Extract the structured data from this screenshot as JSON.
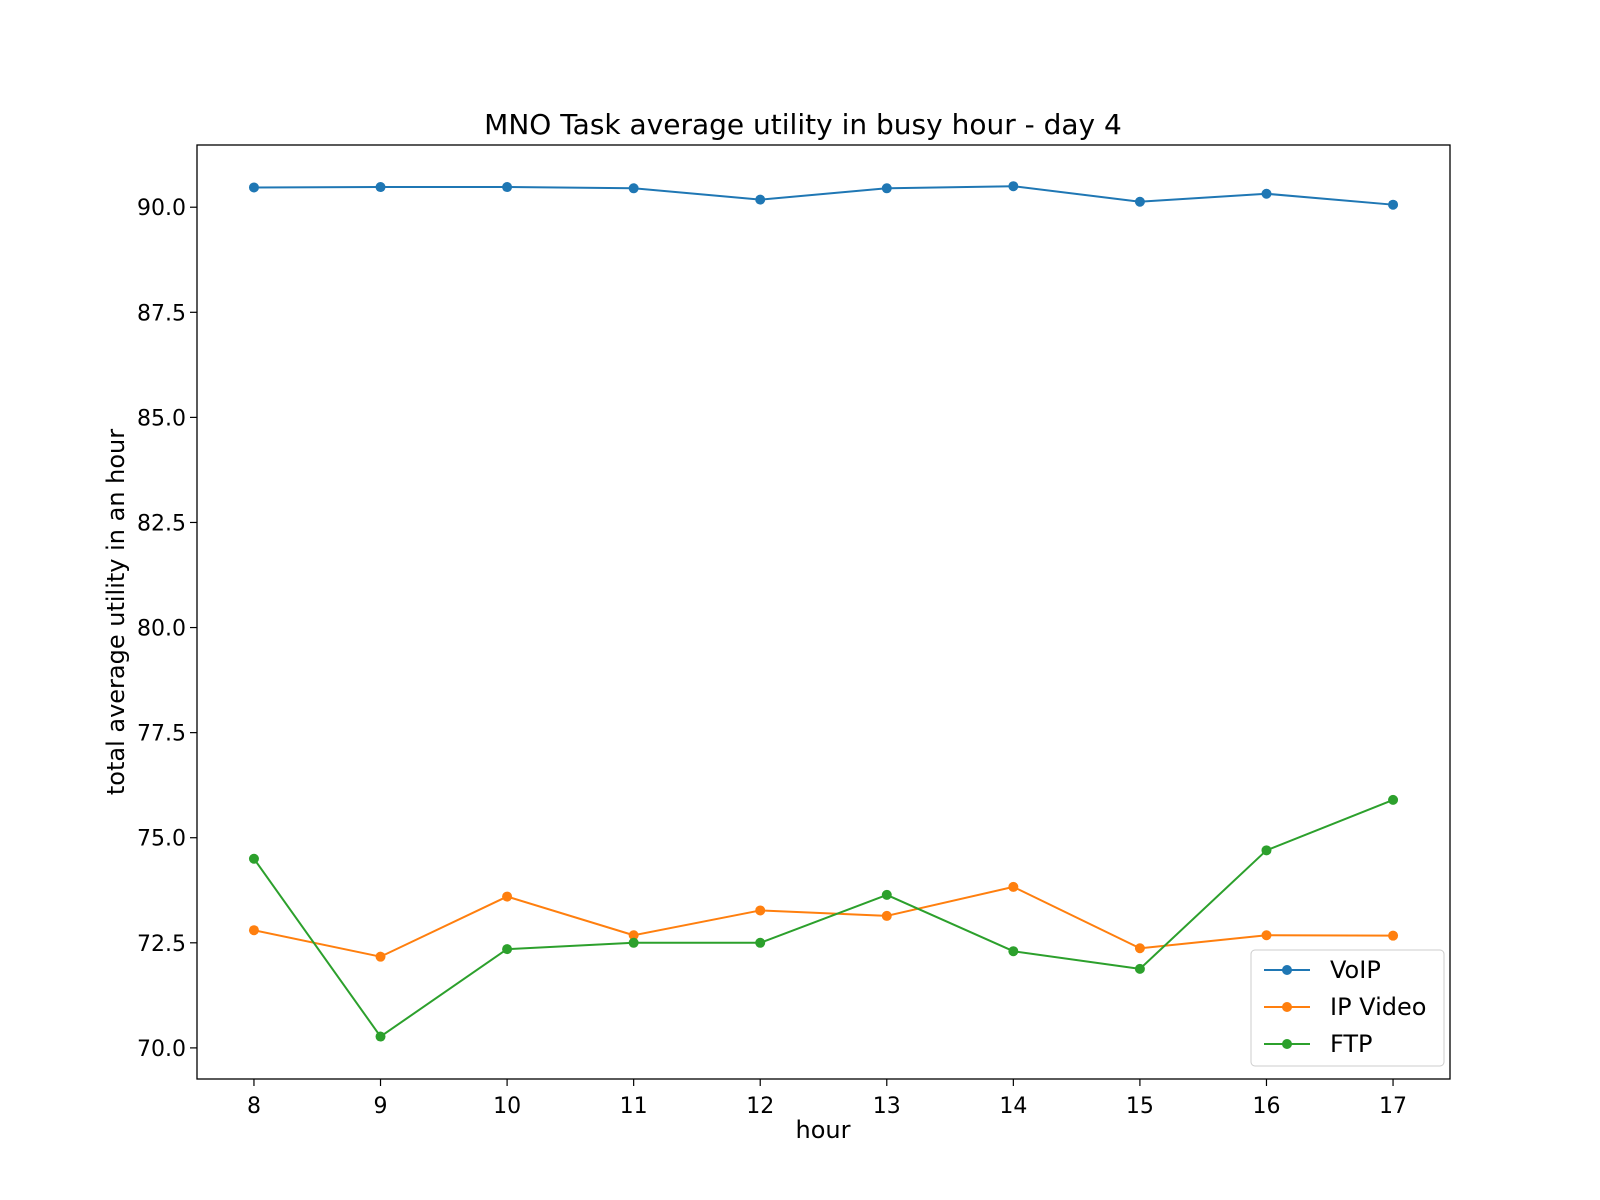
{
  "chart_data": {
    "type": "line",
    "title": "MNO Task average utility in busy hour - day 4",
    "xlabel": "hour",
    "ylabel": "total average utility in an hour",
    "x": [
      8,
      9,
      10,
      11,
      12,
      13,
      14,
      15,
      16,
      17
    ],
    "x_ticks": [
      "8",
      "9",
      "10",
      "11",
      "12",
      "13",
      "14",
      "15",
      "16",
      "17"
    ],
    "xlim": [
      7.55,
      17.45
    ],
    "y_ticks": [
      "70.0",
      "72.5",
      "75.0",
      "77.5",
      "80.0",
      "82.5",
      "85.0",
      "87.5",
      "90.0"
    ],
    "y_tick_values": [
      70.0,
      72.5,
      75.0,
      77.5,
      80.0,
      82.5,
      85.0,
      87.5,
      90.0
    ],
    "ylim": [
      69.26,
      91.48
    ],
    "grid": false,
    "legend_position": "lower right",
    "series": [
      {
        "name": "VoIP",
        "color": "#1f77b4",
        "values": [
          90.47,
          90.48,
          90.48,
          90.45,
          90.18,
          90.45,
          90.5,
          90.13,
          90.32,
          90.06
        ]
      },
      {
        "name": "IP Video",
        "color": "#ff7f0e",
        "values": [
          72.8,
          72.17,
          73.6,
          72.68,
          73.27,
          73.14,
          73.83,
          72.37,
          72.68,
          72.67
        ]
      },
      {
        "name": "FTP",
        "color": "#2ca02c",
        "values": [
          74.5,
          70.27,
          72.35,
          72.5,
          72.5,
          73.64,
          72.3,
          71.88,
          74.7,
          75.9
        ]
      }
    ]
  }
}
